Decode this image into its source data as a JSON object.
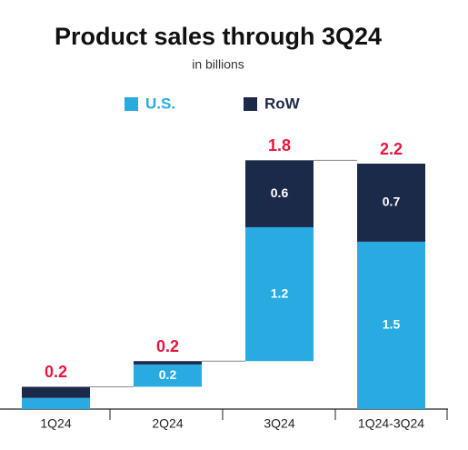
{
  "chart_data": {
    "type": "bar",
    "stacked": true,
    "waterfall": true,
    "title": "Product sales through 3Q24",
    "subtitle": "in billions",
    "categories": [
      "1Q24",
      "2Q24",
      "3Q24",
      "1Q24-3Q24"
    ],
    "series": [
      {
        "name": "U.S.",
        "color": "#29abe2",
        "values": [
          0.1,
          0.2,
          1.2,
          1.5
        ],
        "value_labels": [
          null,
          "0.2",
          "1.2",
          "1.5"
        ]
      },
      {
        "name": "RoW",
        "color": "#1c2a4a",
        "values": [
          0.1,
          0.03,
          0.6,
          0.7
        ],
        "value_labels": [
          null,
          null,
          "0.6",
          "0.7"
        ]
      }
    ],
    "totals": [
      0.2,
      0.2,
      1.8,
      2.2
    ],
    "totals_color": "#e5173f",
    "ylim": [
      0,
      2.2
    ]
  }
}
